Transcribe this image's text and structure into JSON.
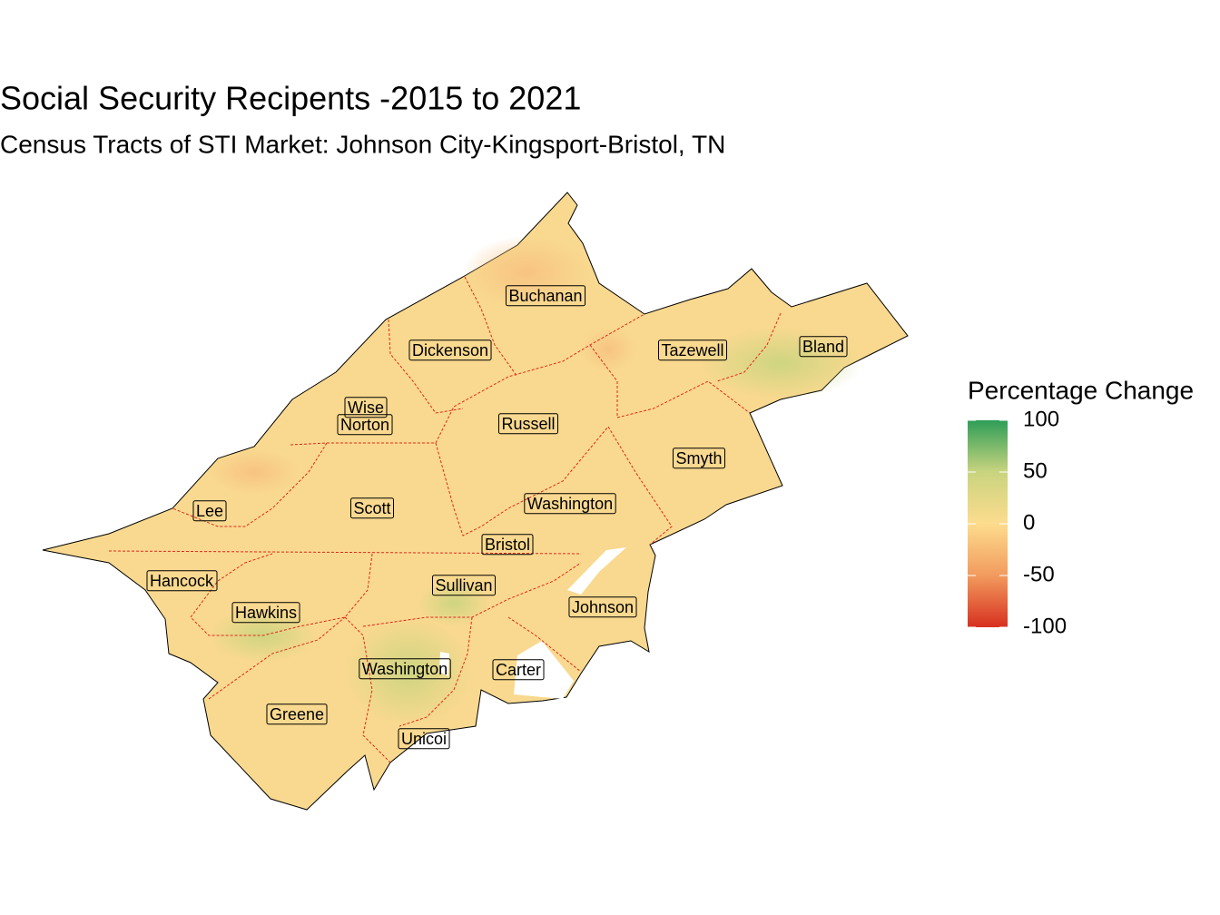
{
  "title": "Social Security Recipents -2015 to 2021",
  "subtitle": "Census Tracts of STI Market: Johnson City-Kingsport-Bristol, TN",
  "labels": [
    "Buchanan",
    "Dickenson",
    "Tazewell",
    "Bland",
    "Wise",
    "Norton",
    "Russell",
    "Smyth",
    "Lee",
    "Scott",
    "Washington",
    "Bristol",
    "Hancock",
    "Sullivan",
    "Johnson",
    "Hawkins",
    "Washington",
    "Carter",
    "Greene",
    "Unicoi"
  ],
  "legend": {
    "title": "Percentage Change",
    "lim": [
      -100,
      100
    ],
    "ticks": [
      100,
      50,
      0,
      -50,
      -100
    ],
    "colors": [
      "#d7301f",
      "#f29b5e",
      "#fddc8e",
      "#c9d47f",
      "#2e9e57"
    ]
  }
}
